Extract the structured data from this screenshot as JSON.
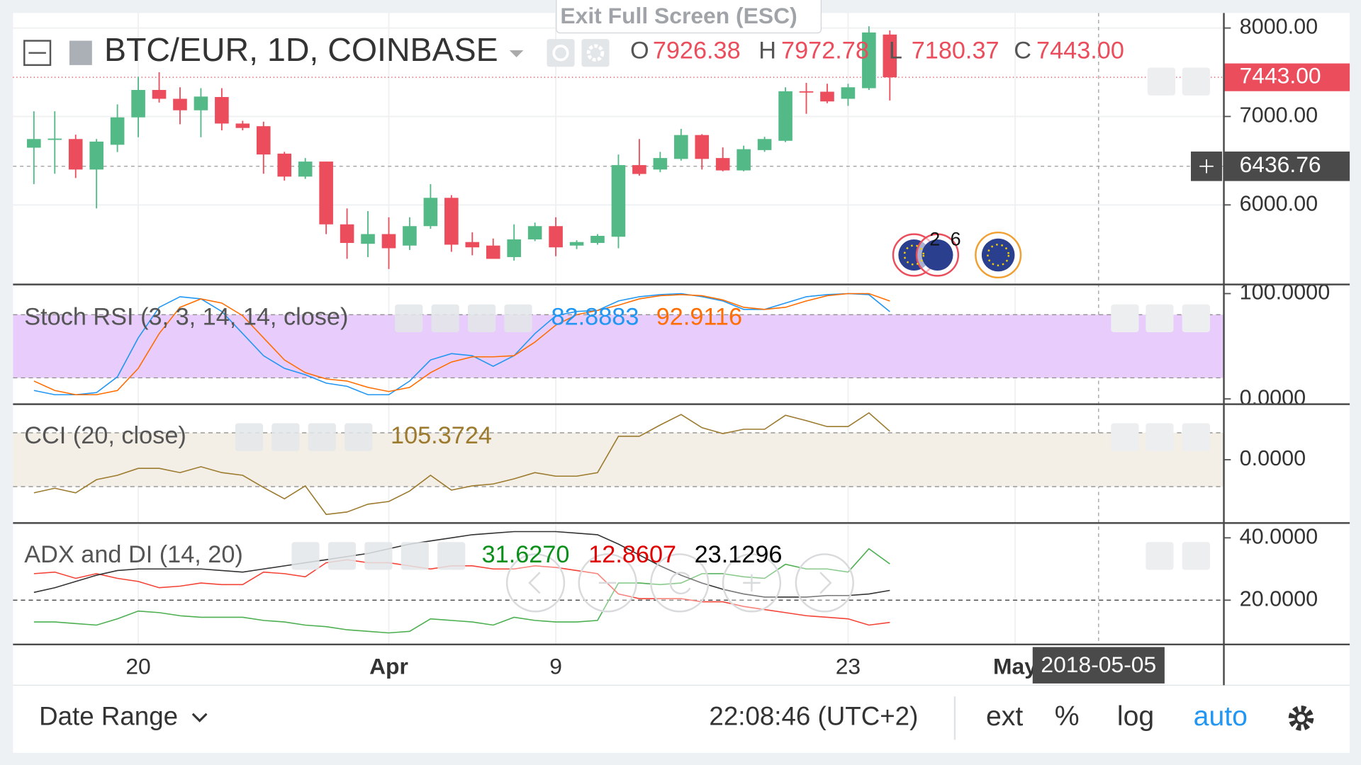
{
  "ui": {
    "exit_fullscreen": "Exit Full Screen (ESC)",
    "date_range": "Date Range",
    "clock": "22:08:46 (UTC+2)",
    "buttons": [
      "ext",
      "%",
      "log",
      "auto"
    ],
    "badges": [
      "2",
      "6"
    ]
  },
  "chart_data": [
    {
      "type": "candlestick",
      "title": "BTC/EUR, 1D, COINBASE",
      "x": [
        "2018-03-15",
        "2018-03-16",
        "2018-03-17",
        "2018-03-18",
        "2018-03-19",
        "2018-03-20",
        "2018-03-21",
        "2018-03-22",
        "2018-03-23",
        "2018-03-24",
        "2018-03-25",
        "2018-03-26",
        "2018-03-27",
        "2018-03-28",
        "2018-03-29",
        "2018-03-30",
        "2018-03-31",
        "2018-04-01",
        "2018-04-02",
        "2018-04-03",
        "2018-04-04",
        "2018-04-05",
        "2018-04-06",
        "2018-04-07",
        "2018-04-08",
        "2018-04-09",
        "2018-04-10",
        "2018-04-11",
        "2018-04-12",
        "2018-04-13",
        "2018-04-14",
        "2018-04-15",
        "2018-04-16",
        "2018-04-17",
        "2018-04-18",
        "2018-04-19",
        "2018-04-20",
        "2018-04-21",
        "2018-04-22",
        "2018-04-23",
        "2018-04-24",
        "2018-04-25"
      ],
      "open": [
        6647,
        6745,
        6745,
        6400,
        6680,
        6990,
        7300,
        7200,
        7070,
        7220,
        6920,
        6890,
        6580,
        6320,
        6490,
        5780,
        5560,
        5670,
        5540,
        5760,
        6080,
        5580,
        5540,
        5410,
        5610,
        5760,
        5540,
        5570,
        5640,
        6450,
        6400,
        6520,
        6790,
        6530,
        6390,
        6620,
        6725,
        7285,
        7280,
        7200,
        7320,
        7926.38
      ],
      "high": [
        7059,
        7059,
        6794,
        6745,
        7137,
        7450,
        7500,
        7330,
        7320,
        7320,
        6951,
        6941,
        6600,
        6530,
        6490,
        5960,
        5930,
        5860,
        5860,
        6235,
        6110,
        5690,
        5620,
        5780,
        5800,
        5860,
        5600,
        5670,
        6570,
        6745,
        6600,
        6860,
        6800,
        6650,
        6670,
        6770,
        7330,
        7380,
        7370,
        7370,
        8020,
        7972.78
      ],
      "low": [
        6235,
        6353,
        6304,
        5960,
        6598,
        6765,
        7157,
        6912,
        6765,
        6843,
        6843,
        6353,
        6275,
        6294,
        5670,
        5390,
        5410,
        5275,
        5490,
        5730,
        5470,
        5430,
        5390,
        5370,
        5590,
        5420,
        5500,
        5550,
        5510,
        6330,
        6370,
        6500,
        6400,
        6380,
        6380,
        6600,
        6710,
        7030,
        7150,
        7120,
        7300,
        7180.37
      ],
      "close": [
        6745,
        6750,
        6400,
        6716,
        6990,
        7300,
        7200,
        7070,
        7225,
        6920,
        6870,
        6570,
        6320,
        6490,
        5780,
        5570,
        5670,
        5510,
        5760,
        6080,
        5550,
        5520,
        5390,
        5610,
        5760,
        5520,
        5580,
        5650,
        6450,
        6350,
        6530,
        6790,
        6520,
        6390,
        6630,
        6745,
        7285,
        7280,
        7170,
        7330,
        7950,
        7443
      ],
      "up_color": "#53b987",
      "down_color": "#eb4d5c",
      "ohlc_legend": [
        {
          "key": "O",
          "label": "7926.38"
        },
        {
          "key": "H",
          "label": "7972.78"
        },
        {
          "key": "L",
          "label": "7180.37"
        },
        {
          "key": "C",
          "label": "7443.00"
        }
      ],
      "last_price_label": "7443.00",
      "crosshair": {
        "price": 6436.76,
        "date": "2018-05-05"
      },
      "xlim": [
        "2018-03-14",
        "2018-05-11"
      ],
      "xticks": [
        {
          "value": "2018-03-20",
          "label": "20"
        },
        {
          "value": "2018-04-01",
          "label": "Apr"
        },
        {
          "value": "2018-04-09",
          "label": "9"
        },
        {
          "value": "2018-04-23",
          "label": "23"
        },
        {
          "value": "2018-05-01",
          "label": "May"
        }
      ],
      "ylim": [
        5100,
        8170
      ],
      "yticks": [
        {
          "value": 6000,
          "label": "6000.00"
        },
        {
          "value": 7000,
          "label": "7000.00"
        },
        {
          "value": 8000,
          "label": "8000.00"
        }
      ],
      "grid": true
    },
    {
      "type": "line",
      "title": "Stoch RSI (3, 3, 14, 14, close)",
      "series": [
        {
          "color": "#2196f3",
          "values": [
            8,
            4,
            4,
            6,
            21,
            58,
            87,
            97,
            95,
            83,
            62,
            41,
            29,
            23,
            15,
            12,
            4,
            4,
            17,
            37,
            43,
            41,
            31,
            41,
            62,
            79,
            83,
            84,
            93,
            97,
            99,
            100,
            97,
            93,
            85,
            85,
            91,
            97,
            99,
            100,
            99,
            82.8883
          ]
        },
        {
          "color": "#ff6d00",
          "values": [
            17,
            8,
            4,
            4,
            8,
            29,
            62,
            87,
            95,
            91,
            79,
            58,
            37,
            25,
            19,
            17,
            11,
            7,
            11,
            25,
            35,
            40,
            40,
            41,
            54,
            70,
            80,
            84,
            89,
            95,
            98,
            99,
            98,
            94,
            87,
            85,
            87,
            93,
            98,
            100,
            100,
            92.9116
          ]
        }
      ],
      "band": [
        20,
        80
      ],
      "band_color": "#e8cdfc",
      "ylim": [
        -5,
        107
      ],
      "yticks": [
        {
          "value": 0,
          "label": "0.0000"
        },
        {
          "value": 100,
          "label": "100.0000"
        }
      ],
      "grid": false
    },
    {
      "type": "line",
      "title": "CCI (20, close)",
      "series": [
        {
          "color": "#9c7a2e",
          "values": [
            -123,
            -106,
            -123,
            -74,
            -58,
            -32,
            -32,
            -48,
            -26,
            -48,
            -58,
            -103,
            -145,
            -97,
            -203,
            -194,
            -165,
            -155,
            -116,
            -58,
            -113,
            -97,
            -90,
            -71,
            -48,
            -61,
            -61,
            -48,
            87,
            87,
            129,
            168,
            119,
            97,
            113,
            113,
            165,
            145,
            123,
            123,
            174,
            105.3724
          ]
        }
      ],
      "band": [
        -100,
        100
      ],
      "band_color": "#f4efe6",
      "ylim": [
        -235,
        203
      ],
      "yticks": [
        {
          "value": 0,
          "label": "0.0000"
        }
      ],
      "grid": false
    },
    {
      "type": "line",
      "title": "ADX and DI (14, 20)",
      "series": [
        {
          "color": "#4caf50",
          "values": [
            13,
            13,
            12.5,
            12,
            14,
            16.5,
            16,
            15,
            14.5,
            14.5,
            14.5,
            13.5,
            13,
            12,
            11.5,
            10.5,
            10,
            9.5,
            10,
            14,
            13.5,
            13,
            12,
            14.5,
            13.5,
            13,
            13,
            13.5,
            25.5,
            25.5,
            25,
            25.5,
            28.5,
            28.5,
            27.5,
            27,
            31.5,
            30,
            30,
            29,
            36.5,
            31.627
          ],
          "last_label": "31.6270",
          "label_color": "#0a8f1a"
        },
        {
          "color": "#f44336",
          "values": [
            28.5,
            29,
            27,
            28.5,
            27,
            26,
            24,
            24.5,
            25.5,
            25,
            25,
            29,
            28.5,
            27.5,
            32,
            33,
            32,
            32,
            31,
            30,
            31,
            31,
            30,
            30,
            31,
            30.5,
            29.5,
            28.5,
            22,
            20.5,
            20.5,
            20.5,
            19.5,
            19.5,
            18,
            17,
            16,
            15,
            14.5,
            14,
            12,
            12.8607
          ],
          "label_color": "#e00000"
        },
        {
          "color": "#333333",
          "values": [
            22.5,
            24,
            26,
            28,
            29.5,
            30,
            30,
            30,
            30,
            29.5,
            29,
            30,
            31,
            32,
            33,
            34,
            35,
            36.5,
            38,
            39,
            40,
            41,
            41.5,
            42,
            42,
            42,
            41.5,
            41,
            38,
            34.5,
            31,
            28,
            25.5,
            23.5,
            22,
            21,
            21,
            21,
            21.5,
            21.5,
            22,
            23.1296
          ],
          "label_color": "#000000"
        }
      ],
      "hline": 20,
      "ylim": [
        5.8,
        44.2
      ],
      "yticks": [
        {
          "value": 20,
          "label": "20.0000"
        },
        {
          "value": 40,
          "label": "40.0000"
        }
      ],
      "grid": false
    }
  ]
}
